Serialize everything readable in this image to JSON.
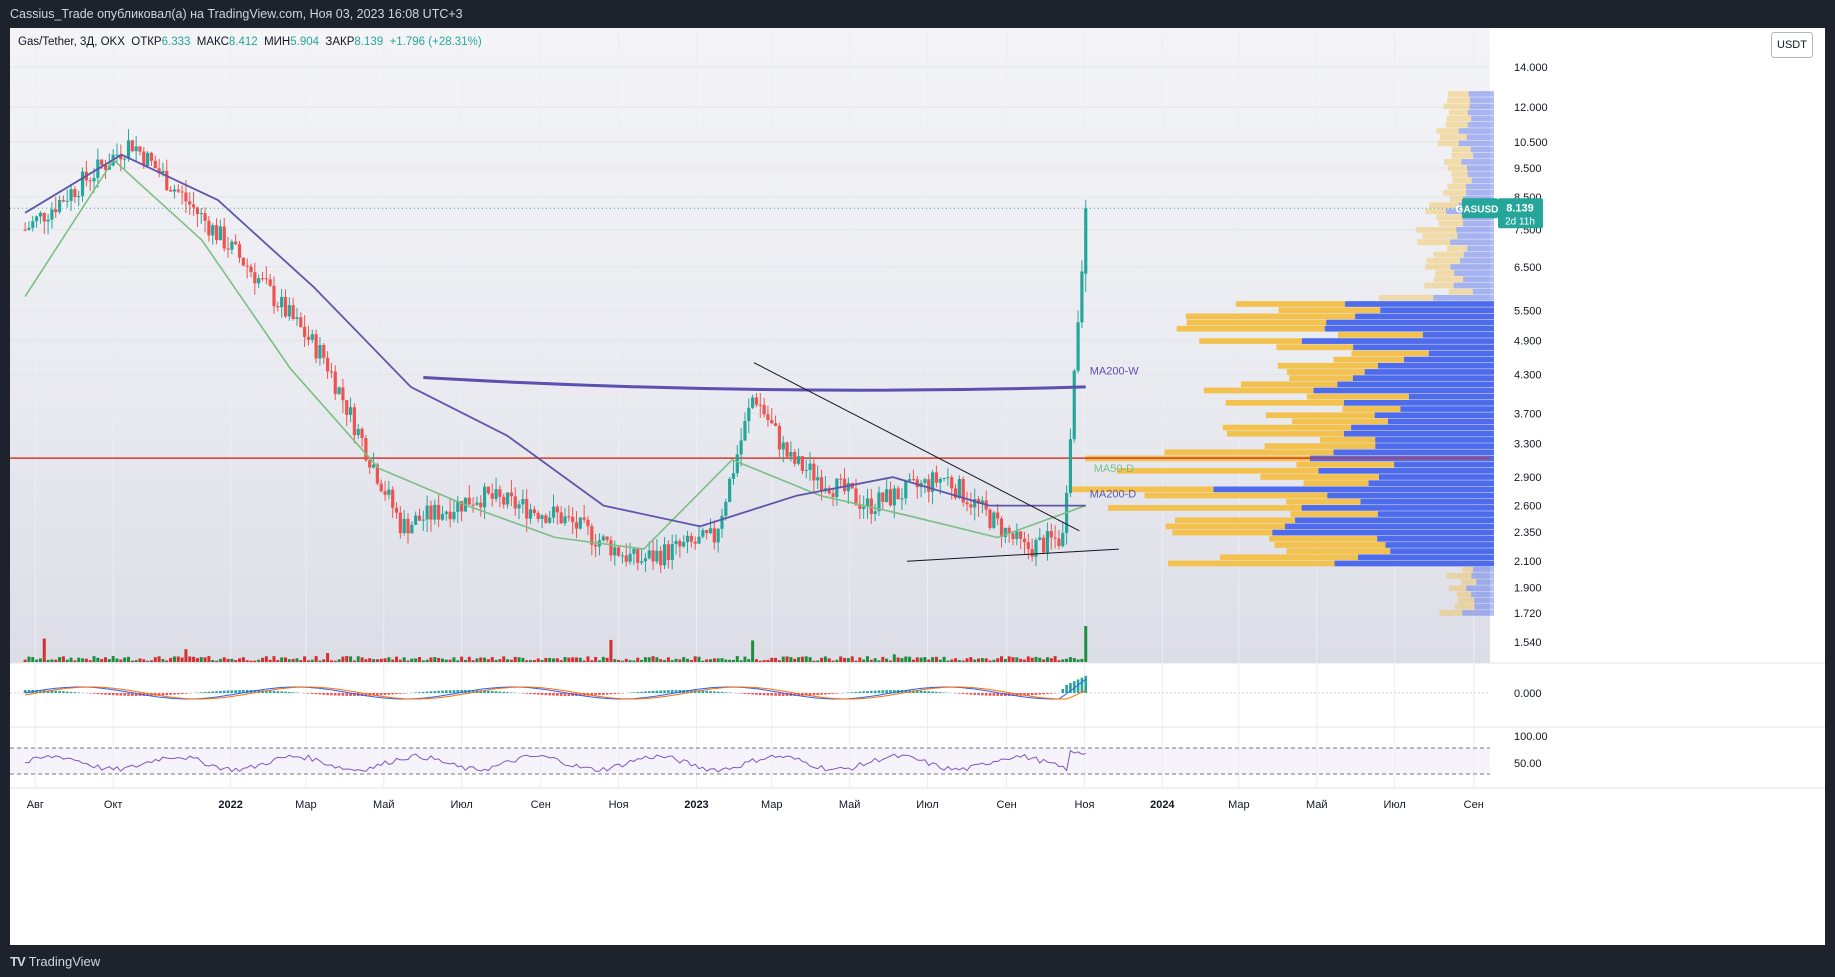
{
  "header": {
    "publisher_line": "Cassius_Trade опубликовал(а) на TradingView.com, Ноя 03, 2023 16:08 UTC+3"
  },
  "legend": {
    "symbol": "Gas/Tether, 3Д, OKX",
    "open_label": "ОТКР",
    "open": "6.333",
    "high_label": "МАКС",
    "high": "8.412",
    "low_label": "МИН",
    "low": "5.904",
    "close_label": "ЗАКР",
    "close": "8.139",
    "change": "+1.796 (+28.31%)"
  },
  "currency_button": "USDT",
  "price_tag": {
    "symbol": "GASUSDT",
    "price": "8.139",
    "countdown": "2d 11h"
  },
  "ma_labels": {
    "weekly": "MA200-W",
    "ma50d": "MA50-D",
    "ma200d": "MA200-D"
  },
  "colors": {
    "up": "#26a69a",
    "down": "#ef5350",
    "ma_weekly": "#5b4fb0",
    "ma200d": "#5e56a8",
    "ma50d": "#7bbf84",
    "resistance": "#d03a2a",
    "vp_up": "#4d6bea",
    "vp_down": "#f2c14e",
    "macd_line": "#2962ff",
    "signal_line": "#ff6d00",
    "rsi": "#7e57c2"
  },
  "footer": {
    "brand": "TradingView",
    "brand_logo": "TV"
  },
  "chart_data": {
    "type": "line",
    "title": "Gas/Tether, 3Д, OKX",
    "price_axis": {
      "scale": "log",
      "ticks": [
        "14.000",
        "12.000",
        "10.500",
        "9.500",
        "8.500",
        "7.500",
        "6.500",
        "5.500",
        "4.900",
        "4.300",
        "3.700",
        "3.300",
        "2.900",
        "2.600",
        "2.350",
        "2.100",
        "1.900",
        "1.720",
        "1.540"
      ],
      "last_price": 8.139,
      "resistance_level": 3.12
    },
    "macd_axis": {
      "ticks": [
        "0.000"
      ]
    },
    "rsi_axis": {
      "ticks": [
        "100.00",
        "50.00"
      ]
    },
    "time_axis": [
      "Авг",
      "Окт",
      "2022",
      "Мар",
      "Май",
      "Июл",
      "Сен",
      "Ноя",
      "2023",
      "Мар",
      "Май",
      "Июл",
      "Сен",
      "Ноя",
      "2024",
      "Мар",
      "Май",
      "Июл",
      "Сен"
    ],
    "series": [
      {
        "x": [
          "2021-08",
          "2021-10",
          "2022-01",
          "2022-03",
          "2022-05",
          "2022-07",
          "2022-09",
          "2022-11",
          "2023-01",
          "2023-02",
          "2023-03",
          "2023-05",
          "2023-07",
          "2023-09",
          "2023-10",
          "2023-11"
        ],
        "values": [
          7.5,
          10.5,
          6.5,
          4.6,
          2.4,
          2.7,
          2.5,
          2.1,
          2.3,
          4.0,
          3.1,
          2.6,
          2.9,
          2.2,
          2.3,
          8.139
        ]
      },
      {
        "name": "MA200-W",
        "x": [
          "2022-06",
          "2023-11"
        ],
        "values": [
          4.25,
          4.1
        ]
      },
      {
        "name": "MA50-D",
        "values": [
          5.8,
          9.8,
          7.2,
          4.4,
          3.0,
          2.6,
          2.3,
          2.2,
          3.1,
          2.7,
          2.5,
          2.3,
          2.6
        ]
      },
      {
        "name": "MA200-D",
        "values": [
          8.0,
          10.0,
          8.4,
          6.0,
          4.1,
          3.4,
          2.6,
          2.4,
          2.7,
          2.9,
          2.6,
          2.6
        ]
      }
    ],
    "trendlines": [
      {
        "from": {
          "x": "2023-02",
          "y": 4.5
        },
        "to": {
          "x": "2023-10",
          "y": 2.36
        }
      },
      {
        "from": {
          "x": "2023-06",
          "y": 2.1
        },
        "to": {
          "x": "2023-11",
          "y": 2.2
        }
      }
    ]
  }
}
